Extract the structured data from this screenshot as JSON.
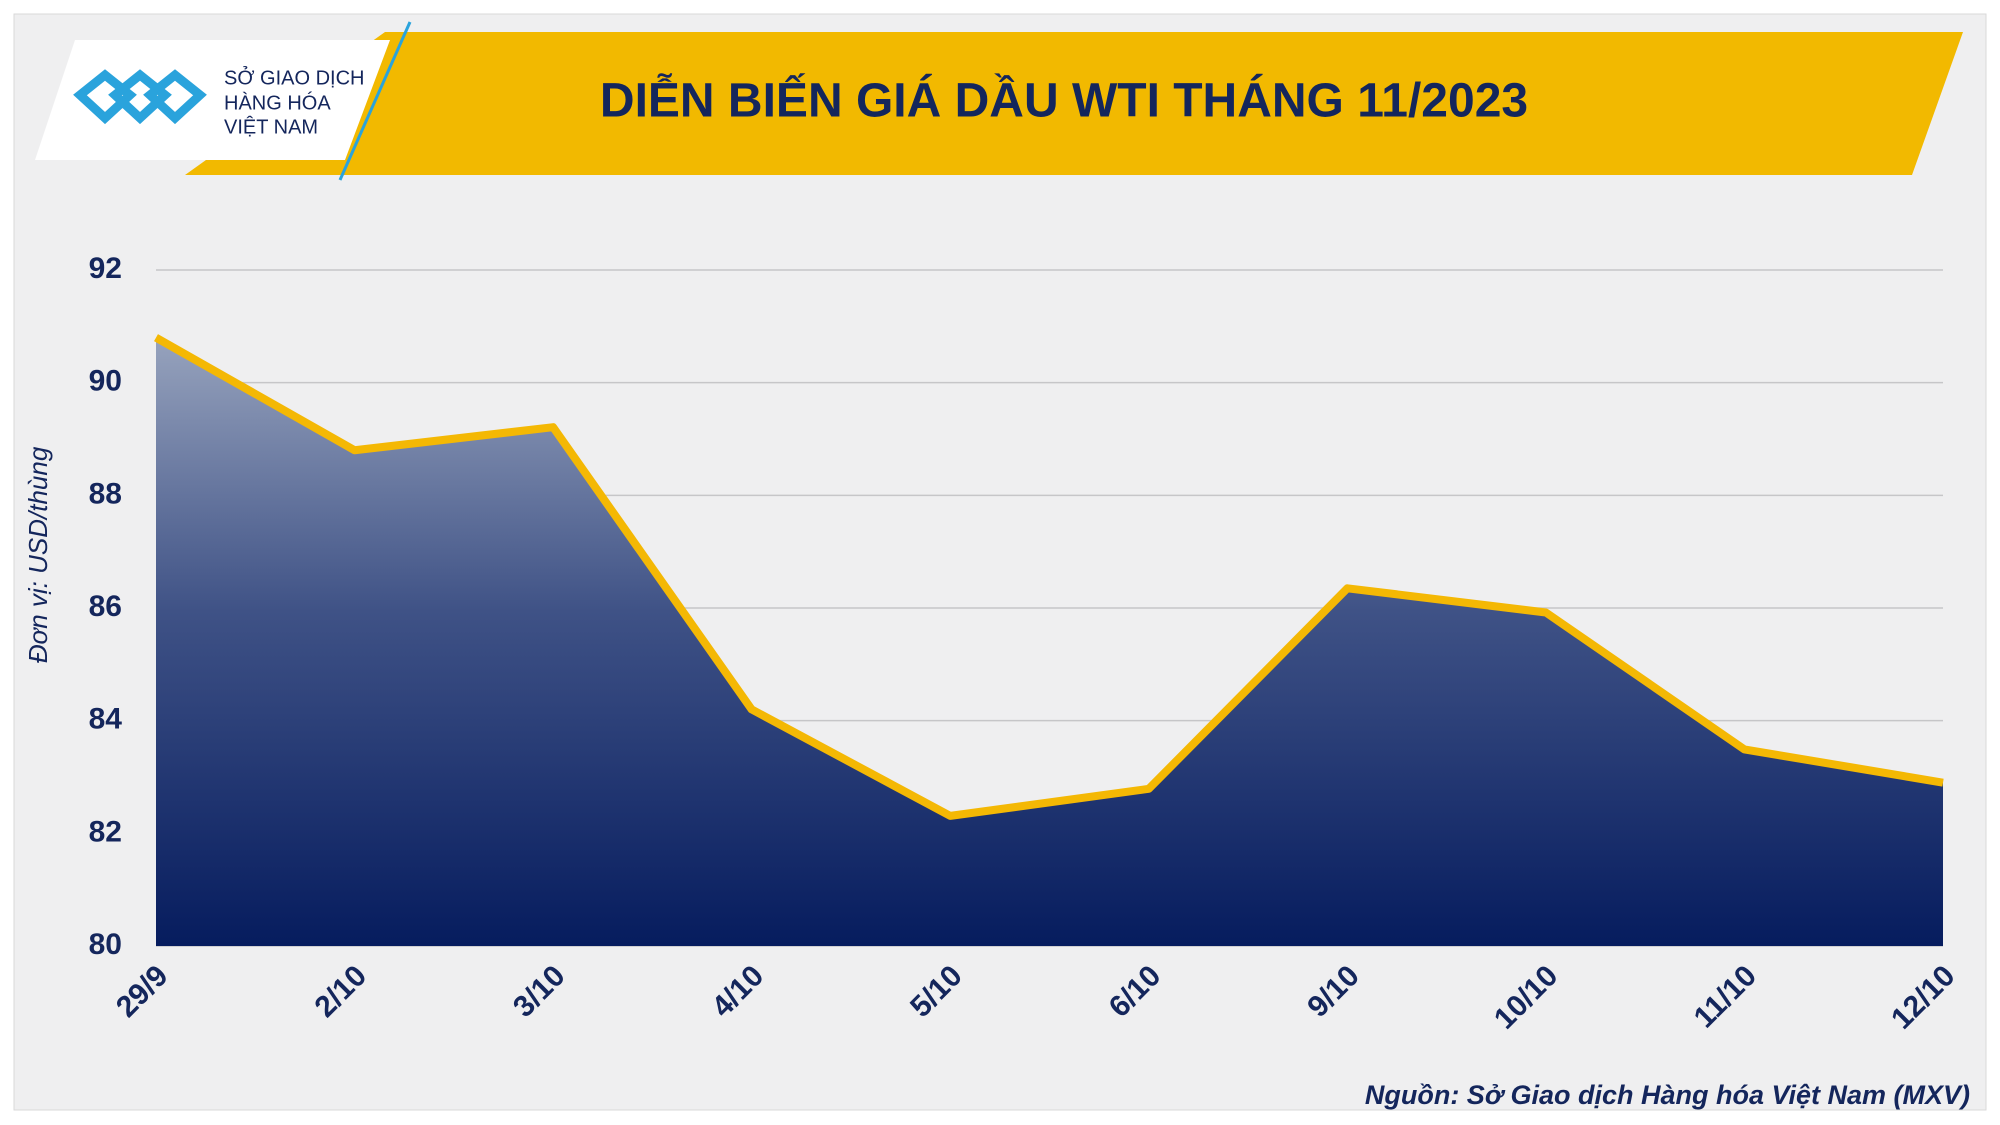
{
  "logo": {
    "lines": [
      "SỞ GIAO DỊCH",
      "HÀNG HÓA",
      "VIỆT NAM"
    ]
  },
  "chart_data": {
    "type": "area",
    "title": "DIỄN BIẾN GIÁ DẦU WTI THÁNG 11/2023",
    "y_label": "Đơn vị: USD/thùng",
    "source": "Nguồn: Sở Giao dịch Hàng hóa Việt Nam (MXV)",
    "categories": [
      "29/9",
      "2/10",
      "3/10",
      "4/10",
      "5/10",
      "6/10",
      "9/10",
      "10/10",
      "11/10",
      "12/10"
    ],
    "values": [
      90.8,
      88.8,
      89.21,
      84.2,
      82.31,
      82.79,
      86.35,
      85.92,
      83.49,
      82.9
    ],
    "color": "#f4b804",
    "ylim": [
      80,
      92
    ],
    "yticks": [
      80,
      82,
      84,
      86,
      88,
      90,
      92
    ],
    "grid": true
  }
}
